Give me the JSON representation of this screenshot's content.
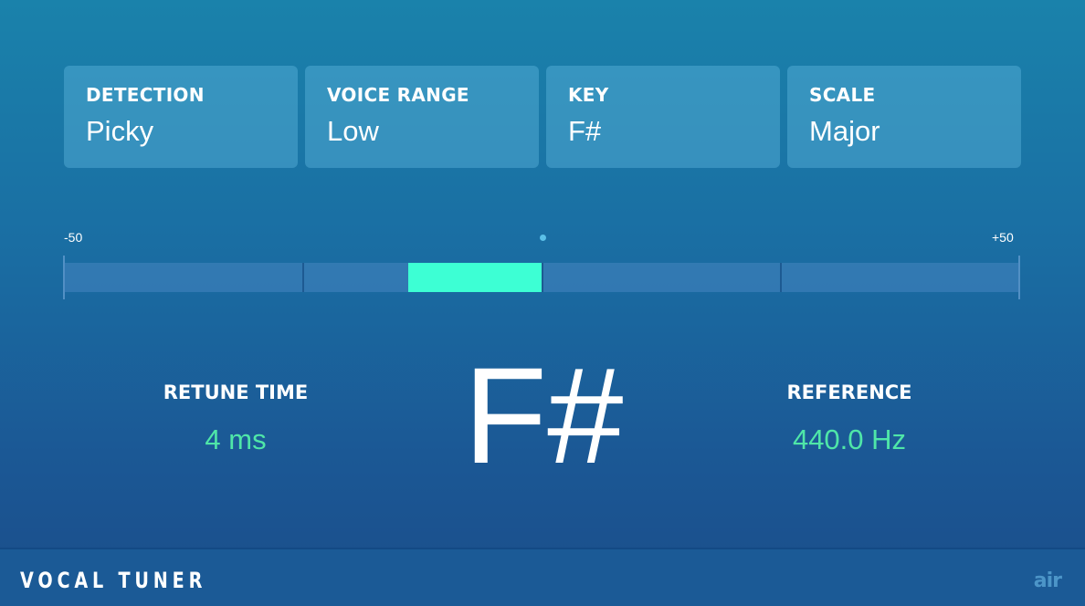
{
  "settings": [
    {
      "label": "DETECTION",
      "value": "Picky"
    },
    {
      "label": "VOICE RANGE",
      "value": "Low"
    },
    {
      "label": "KEY",
      "value": "F#"
    },
    {
      "label": "SCALE",
      "value": "Major"
    }
  ],
  "meter": {
    "min_label": "-50",
    "max_label": "+50",
    "min": -50,
    "max": 50,
    "deviation_cents": -14,
    "fill_color": "#3dffd4"
  },
  "retune": {
    "label": "RETUNE TIME",
    "value": "4 ms"
  },
  "note": "F#",
  "reference": {
    "label": "REFERENCE",
    "value": "440.0 Hz"
  },
  "footer": {
    "title": "VOCAL TUNER",
    "logo": "air"
  },
  "colors": {
    "accent": "#4fe6a8"
  }
}
